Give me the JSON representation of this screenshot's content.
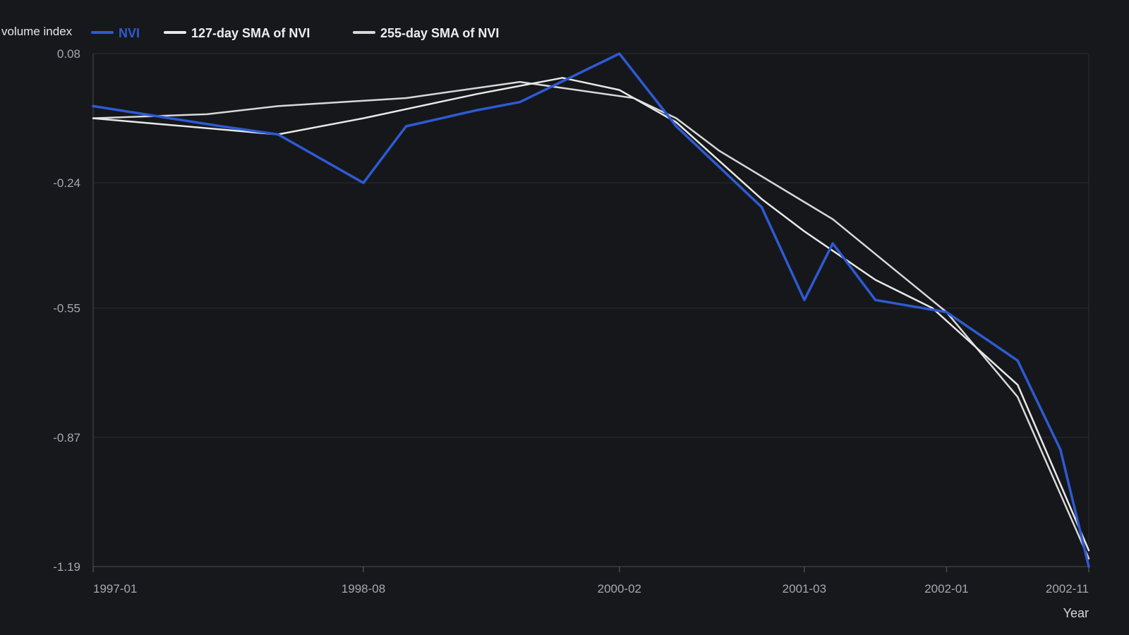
{
  "chart_data": {
    "type": "line",
    "ylabel": "volume index",
    "xlabel": "Year",
    "x_ticks": [
      "1997-01",
      "1998-08",
      "2000-02",
      "2001-03",
      "2002-01",
      "2002-11"
    ],
    "y_ticks": [
      "0.08",
      "-0.24",
      "-0.55",
      "-0.87",
      "-1.19"
    ],
    "ylim": [
      -1.19,
      0.08
    ],
    "xlim": [
      "1997-01",
      "2002-11"
    ],
    "grid": "horizontal",
    "legend_position": "top-left",
    "series": [
      {
        "name": "NVI",
        "color": "#2d5bd3",
        "points": [
          [
            "1997-01",
            -0.05
          ],
          [
            "1997-10",
            -0.1
          ],
          [
            "1998-02",
            -0.12
          ],
          [
            "1998-08",
            -0.24
          ],
          [
            "1998-11",
            -0.1
          ],
          [
            "1999-04",
            -0.06
          ],
          [
            "1999-07",
            -0.04
          ],
          [
            "2000-02",
            0.08
          ],
          [
            "2000-06",
            -0.1
          ],
          [
            "2000-12",
            -0.3
          ],
          [
            "2001-03",
            -0.53
          ],
          [
            "2001-05",
            -0.39
          ],
          [
            "2001-08",
            -0.53
          ],
          [
            "2002-01",
            -0.56
          ],
          [
            "2002-06",
            -0.68
          ],
          [
            "2002-09",
            -0.9
          ],
          [
            "2002-11",
            -1.19
          ]
        ]
      },
      {
        "name": "127-day SMA of NVI",
        "color": "#e8e8e8",
        "points": [
          [
            "1997-01",
            -0.08
          ],
          [
            "1998-02",
            -0.12
          ],
          [
            "1998-08",
            -0.08
          ],
          [
            "1999-04",
            -0.02
          ],
          [
            "1999-10",
            0.02
          ],
          [
            "2000-02",
            -0.01
          ],
          [
            "2000-06",
            -0.09
          ],
          [
            "2000-12",
            -0.28
          ],
          [
            "2001-03",
            -0.36
          ],
          [
            "2001-08",
            -0.48
          ],
          [
            "2001-12",
            -0.55
          ],
          [
            "2002-06",
            -0.74
          ],
          [
            "2002-11",
            -1.15
          ]
        ]
      },
      {
        "name": "255-day SMA of NVI",
        "color": "#d8d8d8",
        "points": [
          [
            "1997-01",
            -0.08
          ],
          [
            "1997-09",
            -0.07
          ],
          [
            "1998-02",
            -0.05
          ],
          [
            "1998-11",
            -0.03
          ],
          [
            "1999-07",
            0.01
          ],
          [
            "2000-03",
            -0.03
          ],
          [
            "2000-06",
            -0.08
          ],
          [
            "2000-09",
            -0.16
          ],
          [
            "2001-05",
            -0.33
          ],
          [
            "2002-01",
            -0.56
          ],
          [
            "2002-06",
            -0.77
          ],
          [
            "2002-11",
            -1.17
          ]
        ]
      }
    ]
  }
}
